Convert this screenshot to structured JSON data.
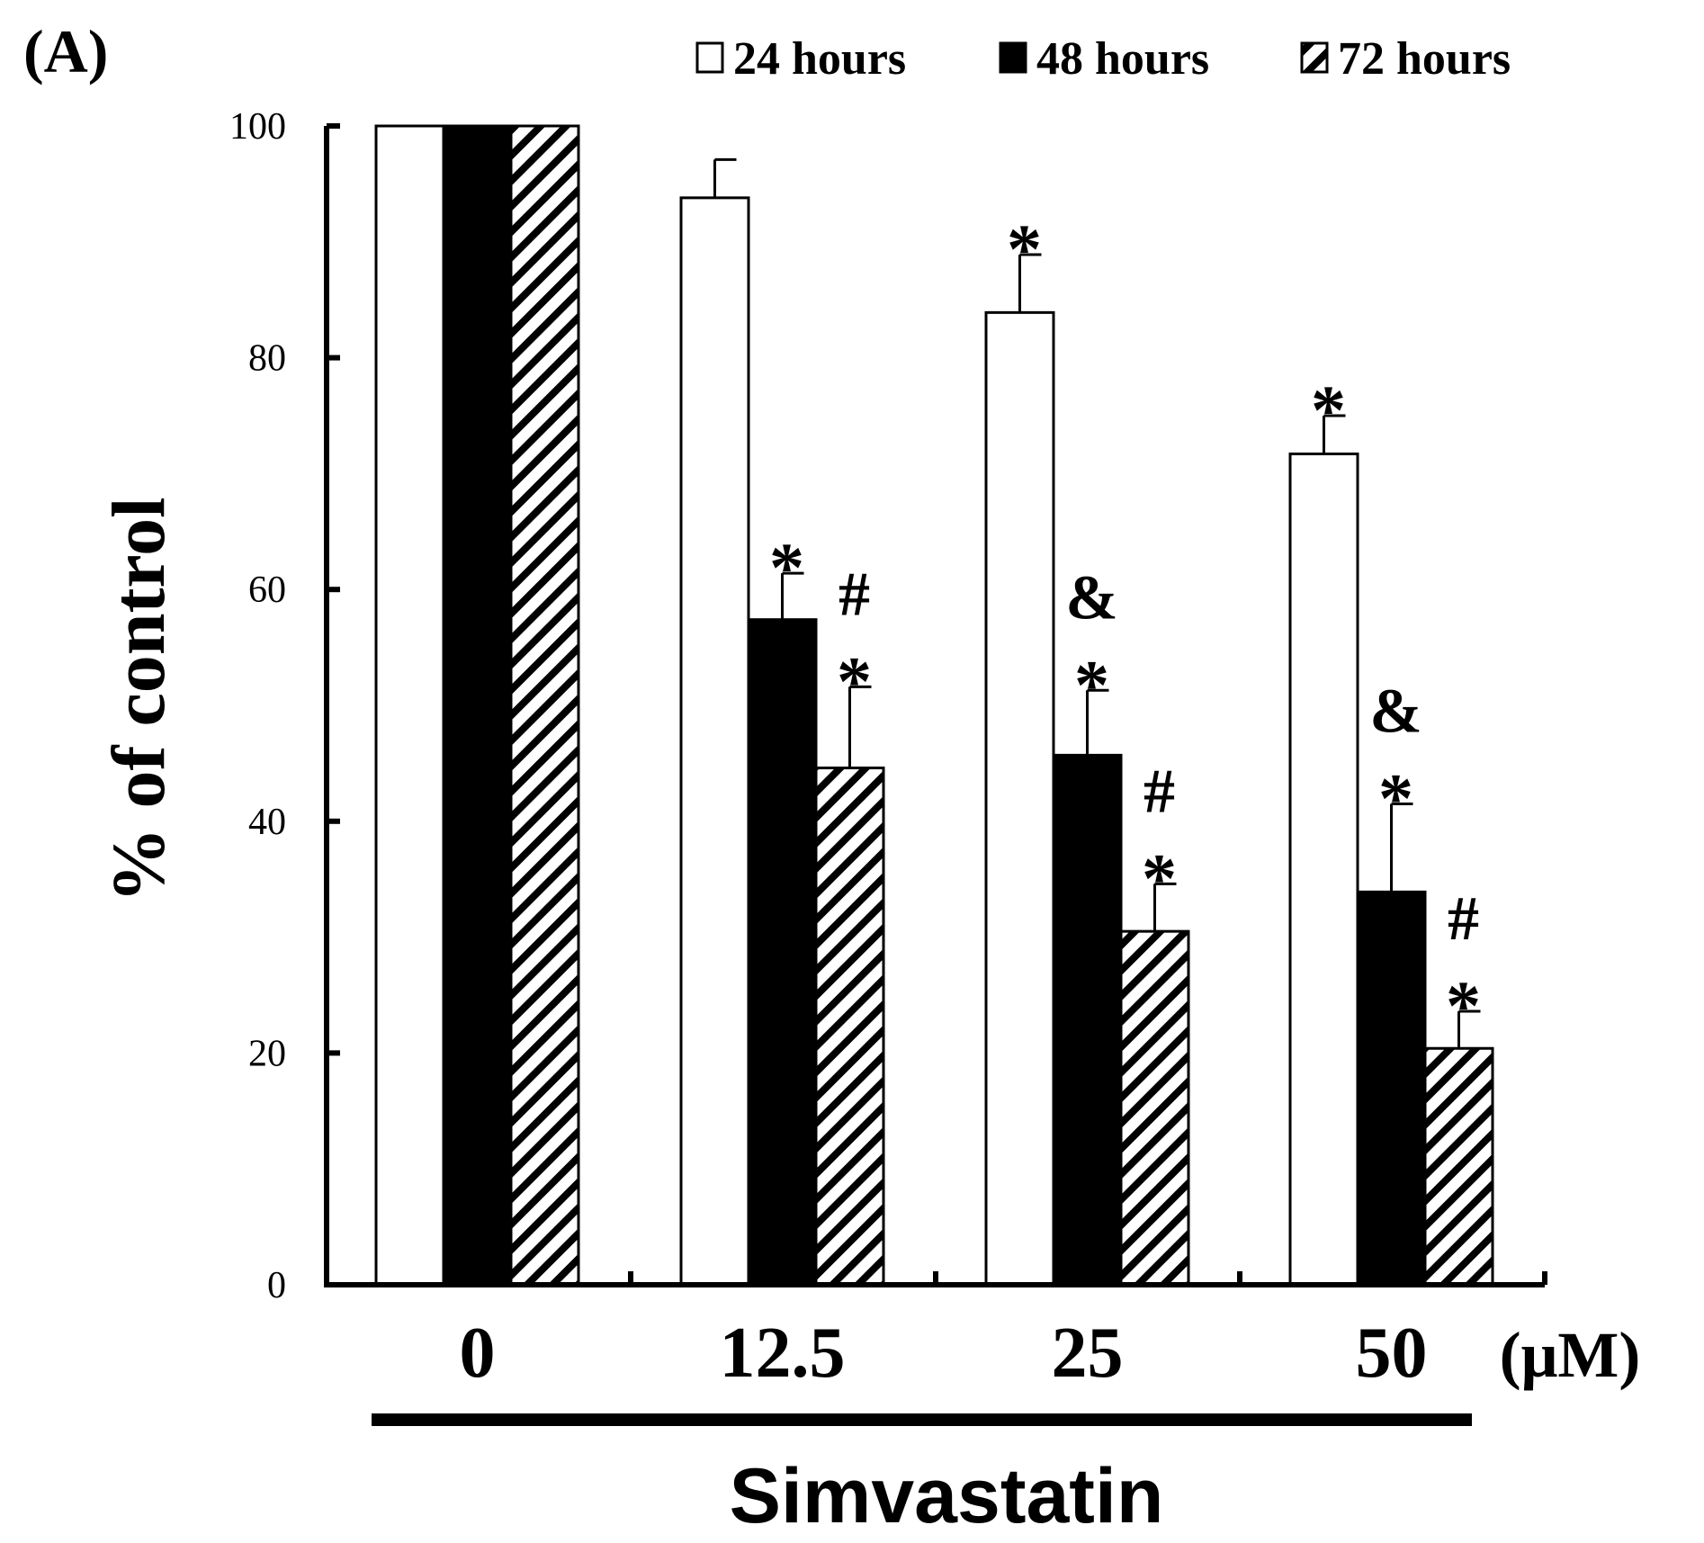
{
  "panel_label": "(A)",
  "chart_data": {
    "type": "bar",
    "categories": [
      "0",
      "12.5",
      "25",
      "50"
    ],
    "unit_label": "(μM)",
    "group_label": "Simvastatin",
    "ylabel": "% of control",
    "ylim": [
      0,
      100
    ],
    "yticks": [
      0,
      20,
      40,
      60,
      80,
      100
    ],
    "grid": false,
    "legend_position": "top-right",
    "series": [
      {
        "name": "24 hours",
        "fill": "white",
        "values": [
          100,
          93.8,
          83.9,
          71.7
        ],
        "errors": [
          0,
          3.3,
          5.0,
          3.3
        ],
        "annotations": [
          [],
          [],
          [
            "*"
          ],
          [
            "*"
          ]
        ]
      },
      {
        "name": "48 hours",
        "fill": "black",
        "values": [
          100,
          57.4,
          45.7,
          33.9
        ],
        "errors": [
          0,
          4.0,
          5.6,
          7.6
        ],
        "annotations": [
          [],
          [
            "*"
          ],
          [
            "&",
            "*"
          ],
          [
            "&",
            "*"
          ]
        ]
      },
      {
        "name": "72 hours",
        "fill": "hatched",
        "values": [
          100,
          44.6,
          30.5,
          20.4
        ],
        "errors": [
          0,
          7.0,
          4.1,
          3.2
        ],
        "annotations": [
          [],
          [
            "#",
            "*"
          ],
          [
            "#",
            "*"
          ],
          [
            "#",
            "*"
          ]
        ]
      }
    ]
  }
}
